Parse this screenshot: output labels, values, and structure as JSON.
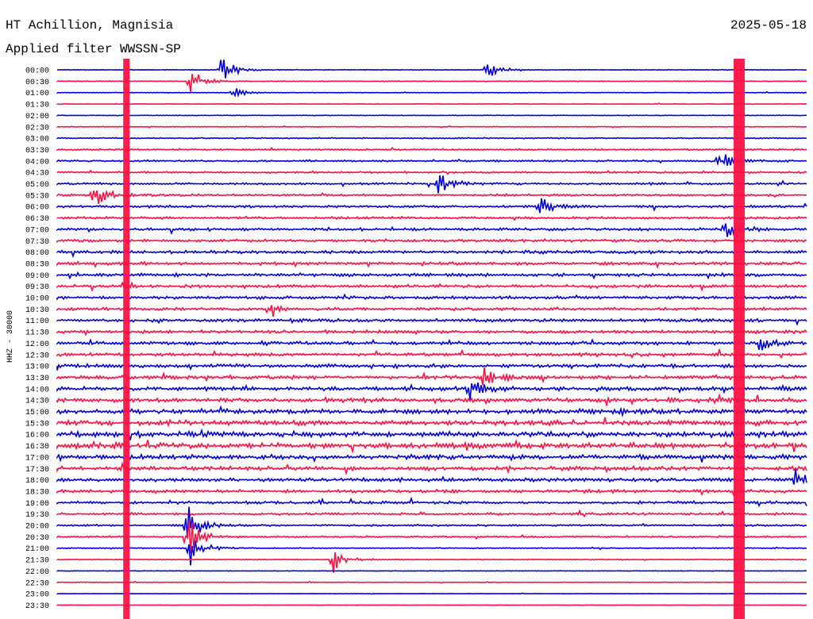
{
  "header": {
    "station": "HT Achillion, Magnisia",
    "date": "2025-05-18",
    "filter": "Applied filter WWSSN-SP"
  },
  "chart_data": {
    "type": "line",
    "title": "HT Achillion, Magnisia",
    "subtitle": "Applied filter WWSSN-SP",
    "date": "2025-05-18",
    "ylabel": "HHZ - 30000",
    "xlabel": "",
    "grid": false,
    "legend": "none",
    "rows": [
      "00:00",
      "00:30",
      "01:00",
      "01:30",
      "02:00",
      "02:30",
      "03:00",
      "03:30",
      "04:00",
      "04:30",
      "05:00",
      "05:30",
      "06:00",
      "06:30",
      "07:00",
      "07:30",
      "08:00",
      "08:30",
      "09:00",
      "09:30",
      "10:00",
      "10:30",
      "11:00",
      "11:30",
      "12:00",
      "12:30",
      "13:00",
      "13:30",
      "14:00",
      "14:30",
      "15:00",
      "15:30",
      "16:00",
      "16:30",
      "17:00",
      "17:30",
      "18:00",
      "18:30",
      "19:00",
      "19:30",
      "20:00",
      "20:30",
      "21:00",
      "21:30",
      "22:00",
      "22:30",
      "23:00",
      "23:30"
    ],
    "colors": {
      "blue": "#0000dd",
      "red": "#ff1144",
      "ink": "#000000"
    },
    "noise_level": [
      0.3,
      0.3,
      0.3,
      0.3,
      0.3,
      0.4,
      0.6,
      0.8,
      0.9,
      1.0,
      1.1,
      1.1,
      1.2,
      1.2,
      1.4,
      1.4,
      1.6,
      1.6,
      1.6,
      1.5,
      1.5,
      1.5,
      1.6,
      1.6,
      1.7,
      1.7,
      1.8,
      1.9,
      2.0,
      2.2,
      2.4,
      2.6,
      2.8,
      2.8,
      2.3,
      2.0,
      1.8,
      1.6,
      1.4,
      1.2,
      1.0,
      0.8,
      0.5,
      0.4,
      0.3,
      0.3,
      0.2,
      0.2
    ],
    "events": [
      {
        "row": 0,
        "minute": 6.5,
        "amplitude": 22
      },
      {
        "row": 0,
        "minute": 17.2,
        "amplitude": 12
      },
      {
        "row": 1,
        "minute": 5.3,
        "amplitude": 18
      },
      {
        "row": 2,
        "minute": 7.0,
        "amplitude": 8
      },
      {
        "row": 8,
        "minute": 26.5,
        "amplitude": 14
      },
      {
        "row": 10,
        "minute": 15.2,
        "amplitude": 18
      },
      {
        "row": 11,
        "minute": 1.5,
        "amplitude": 18
      },
      {
        "row": 12,
        "minute": 19.3,
        "amplitude": 14
      },
      {
        "row": 14,
        "minute": 26.7,
        "amplitude": 16
      },
      {
        "row": 21,
        "minute": 8.5,
        "amplitude": 8
      },
      {
        "row": 24,
        "minute": 28.0,
        "amplitude": 14
      },
      {
        "row": 27,
        "minute": 17.0,
        "amplitude": 18
      },
      {
        "row": 28,
        "minute": 16.5,
        "amplitude": 14
      },
      {
        "row": 36,
        "minute": 29.5,
        "amplitude": 14
      },
      {
        "row": 38,
        "minute": 30.0,
        "amplitude": 10
      },
      {
        "row": 40,
        "minute": 5.2,
        "amplitude": 30
      },
      {
        "row": 41,
        "minute": 5.2,
        "amplitude": 30
      },
      {
        "row": 42,
        "minute": 5.3,
        "amplitude": 24
      },
      {
        "row": 43,
        "minute": 11.0,
        "amplitude": 20
      }
    ]
  }
}
